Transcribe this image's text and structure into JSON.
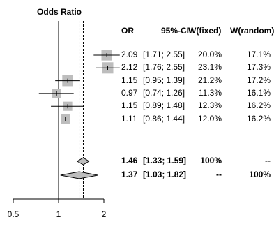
{
  "chart_data": {
    "type": "forest",
    "axis_title": "Odds Ratio",
    "columns": [
      "OR",
      "95%-CI",
      "W(fixed)",
      "W(random)"
    ],
    "x_scale": "log",
    "xlim": [
      0.5,
      2
    ],
    "x_ticks": [
      0.5,
      1,
      2
    ],
    "x_tick_labels": [
      "0.5",
      "1",
      "2"
    ],
    "reference_lines": {
      "null": 1,
      "fixed_effect": 1.46,
      "random_effect": 1.37
    },
    "studies": [
      {
        "or": 2.09,
        "lower": 1.71,
        "upper": 2.55,
        "or_label": "2.09",
        "ci_label": "[1.71; 2.55]",
        "w_fixed": 20.0,
        "w_fixed_label": "20.0%",
        "w_random_label": "17.1%"
      },
      {
        "or": 2.12,
        "lower": 1.76,
        "upper": 2.55,
        "or_label": "2.12",
        "ci_label": "[1.76; 2.55]",
        "w_fixed": 23.1,
        "w_fixed_label": "23.1%",
        "w_random_label": "17.3%"
      },
      {
        "or": 1.15,
        "lower": 0.95,
        "upper": 1.39,
        "or_label": "1.15",
        "ci_label": "[0.95; 1.39]",
        "w_fixed": 21.2,
        "w_fixed_label": "21.2%",
        "w_random_label": "17.2%"
      },
      {
        "or": 0.97,
        "lower": 0.74,
        "upper": 1.26,
        "or_label": "0.97",
        "ci_label": "[0.74; 1.26]",
        "w_fixed": 11.3,
        "w_fixed_label": "11.3%",
        "w_random_label": "16.1%"
      },
      {
        "or": 1.15,
        "lower": 0.89,
        "upper": 1.48,
        "or_label": "1.15",
        "ci_label": "[0.89; 1.48]",
        "w_fixed": 12.3,
        "w_fixed_label": "12.3%",
        "w_random_label": "16.2%"
      },
      {
        "or": 1.11,
        "lower": 0.86,
        "upper": 1.44,
        "or_label": "1.11",
        "ci_label": "[0.86; 1.44]",
        "w_fixed": 12.0,
        "w_fixed_label": "12.0%",
        "w_random_label": "16.2%"
      }
    ],
    "summaries": [
      {
        "or": 1.46,
        "lower": 1.33,
        "upper": 1.59,
        "or_label": "1.46",
        "ci_label": "[1.33; 1.59]",
        "w_fixed_label": "100%",
        "w_random_label": "--"
      },
      {
        "or": 1.37,
        "lower": 1.03,
        "upper": 1.82,
        "or_label": "1.37",
        "ci_label": "[1.03; 1.82]",
        "w_fixed_label": "--",
        "w_random_label": "100%"
      }
    ],
    "colors": {
      "square": "#bdbdbd",
      "diamond": "#bdbdbd",
      "line": "#000000"
    }
  }
}
